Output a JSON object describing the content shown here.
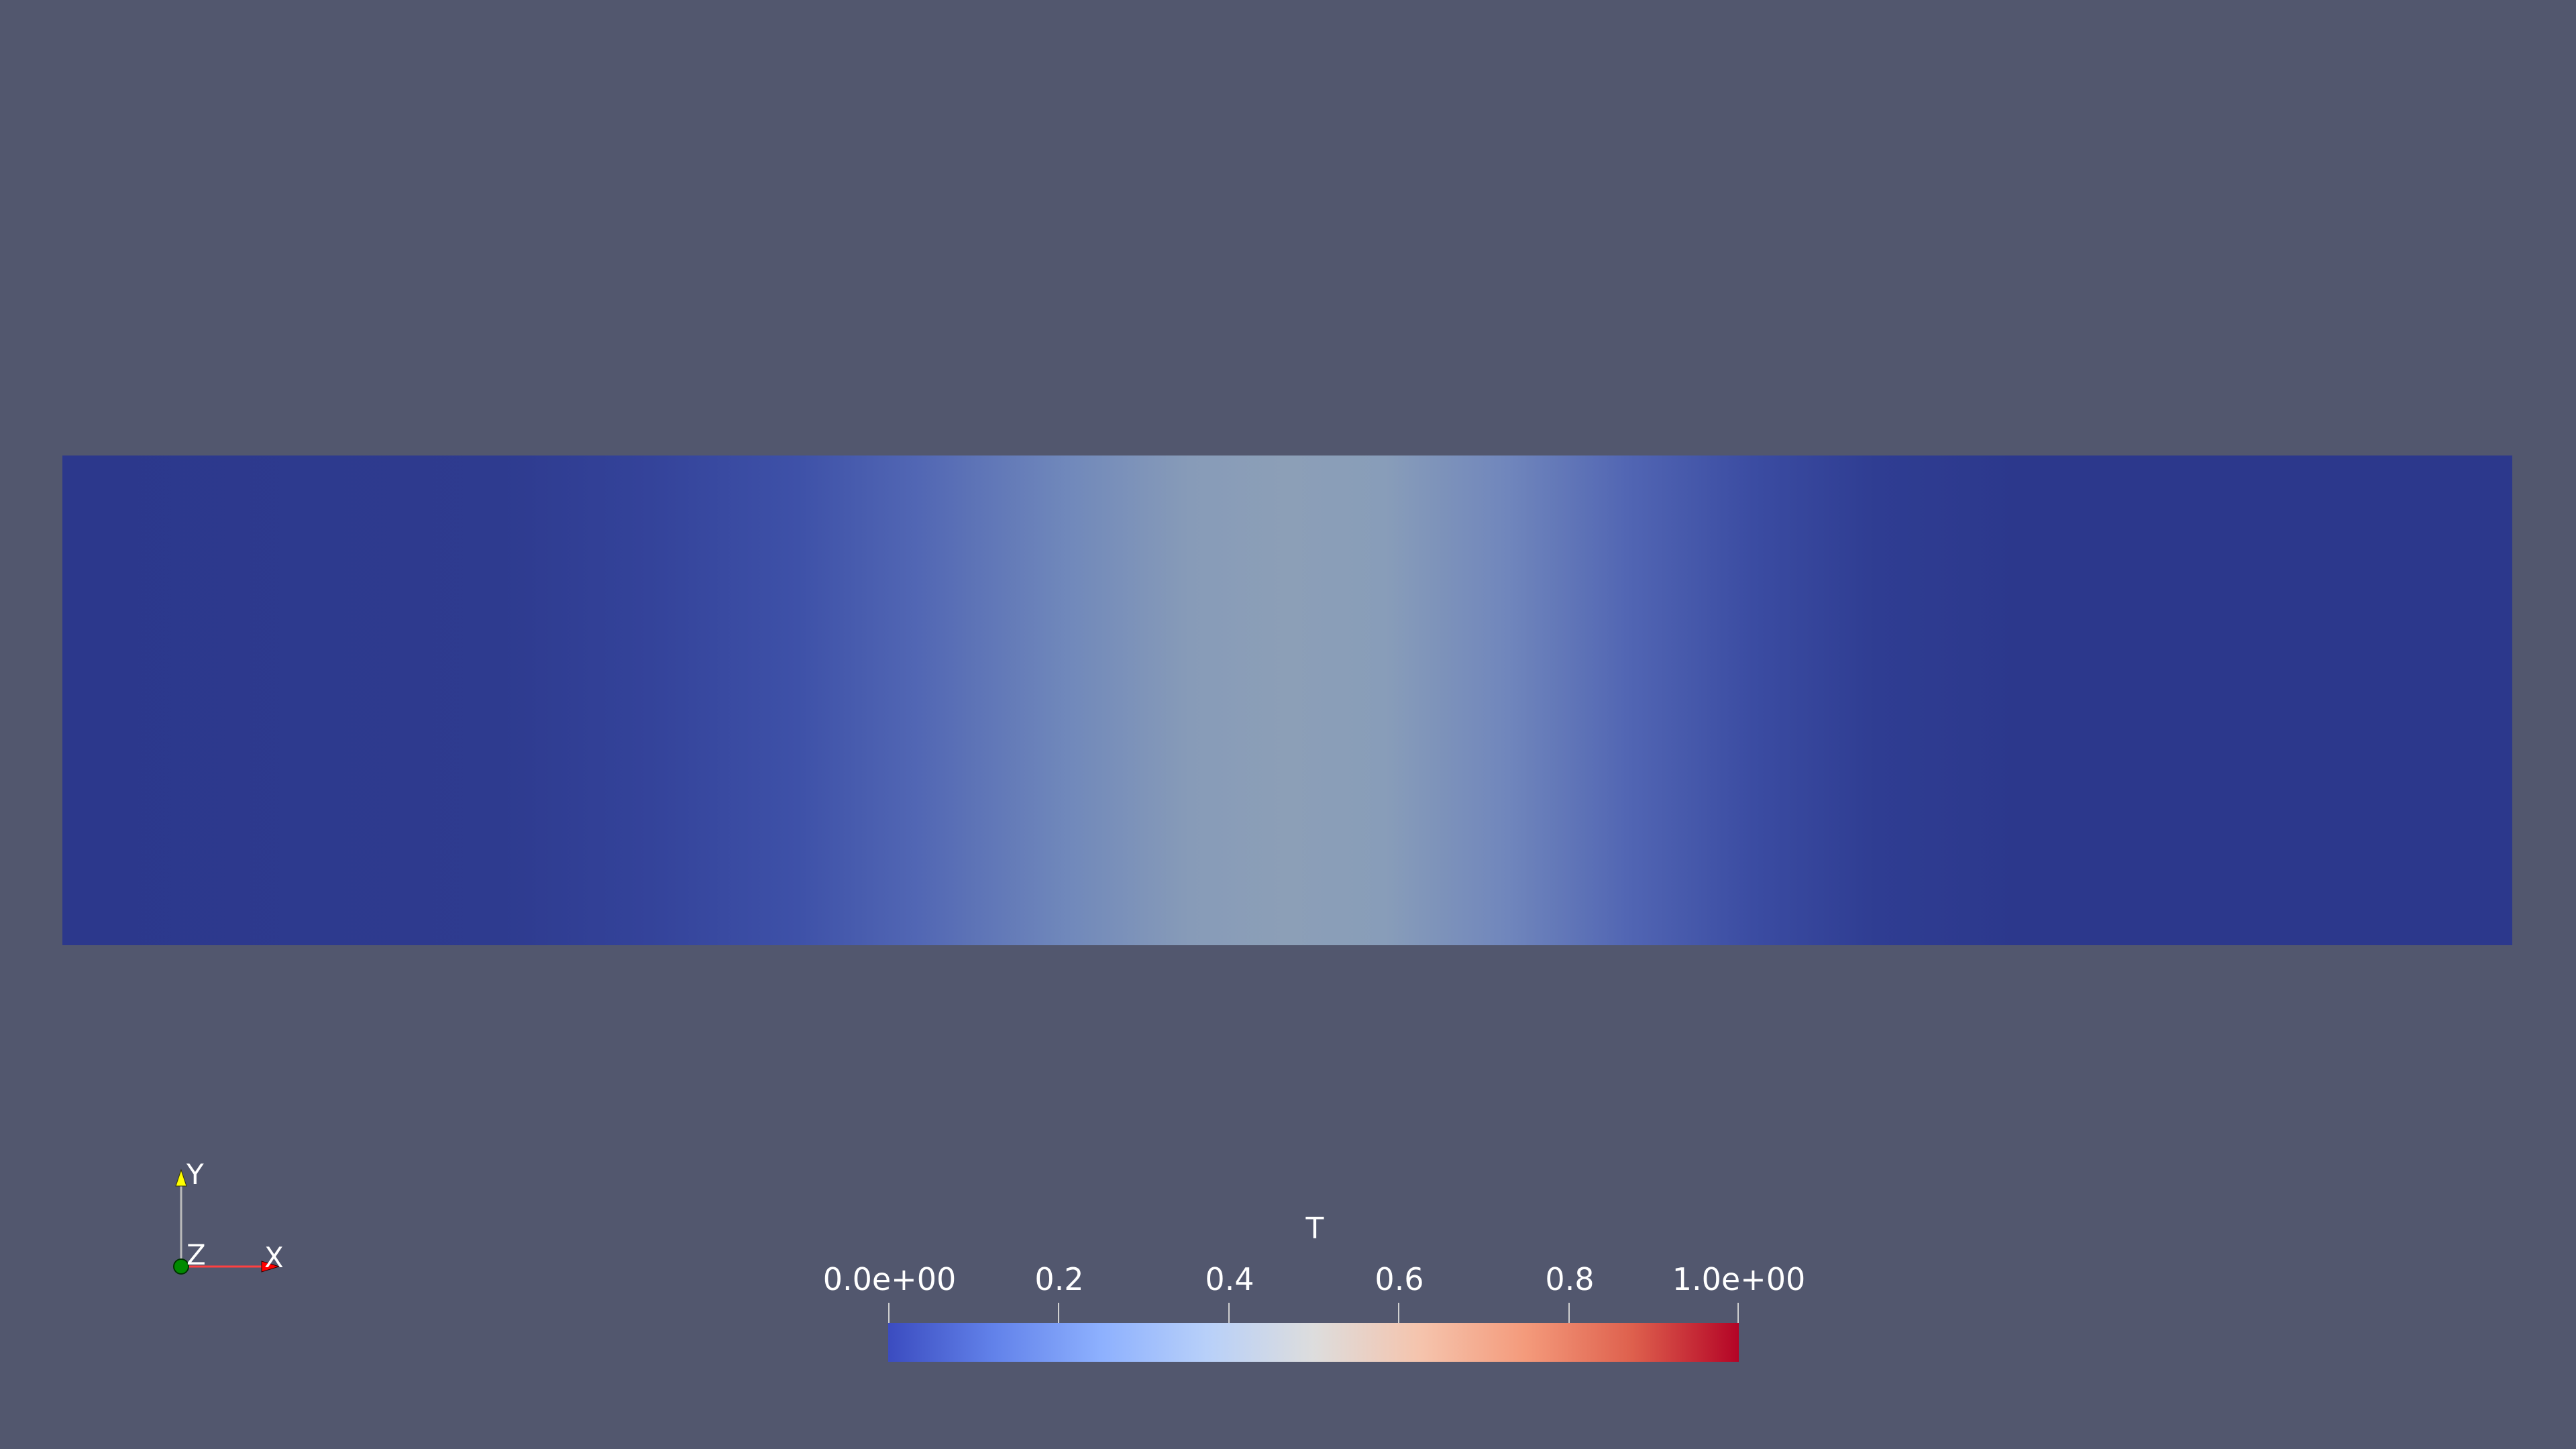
{
  "scene": {
    "background_color": "#52576e"
  },
  "field": {
    "colormap": "coolwarm",
    "scalar": "T"
  },
  "orientation_axes": {
    "y_label": "Y",
    "z_label": "Z",
    "x_label": "X",
    "y_color": "#ffff00",
    "z_color": "#00aa00",
    "x_color": "#ff0000"
  },
  "colorbar": {
    "title": "T",
    "range": [
      0.0,
      1.0
    ],
    "ticks": [
      {
        "value": 0.0,
        "label": "0.0e+00"
      },
      {
        "value": 0.2,
        "label": "0.2"
      },
      {
        "value": 0.4,
        "label": "0.4"
      },
      {
        "value": 0.6,
        "label": "0.6"
      },
      {
        "value": 0.8,
        "label": "0.8"
      },
      {
        "value": 1.0,
        "label": "1.0e+00"
      }
    ]
  }
}
